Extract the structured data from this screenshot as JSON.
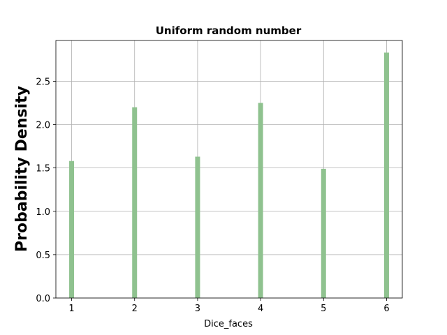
{
  "chart_data": {
    "type": "bar",
    "title": "Uniform random number",
    "xlabel": "Dice_faces",
    "ylabel": "Probability Density",
    "categories": [
      1,
      2,
      3,
      4,
      5,
      6
    ],
    "values": [
      1.58,
      2.2,
      1.63,
      2.25,
      1.49,
      2.83
    ],
    "xlim": [
      0.75,
      6.25
    ],
    "ylim": [
      0,
      2.97
    ],
    "xticks": [
      1,
      2,
      3,
      4,
      5,
      6
    ],
    "xtick_labels": [
      "1",
      "2",
      "3",
      "4",
      "5",
      "6"
    ],
    "yticks": [
      0,
      0.5,
      1.0,
      1.5,
      2.0,
      2.5
    ],
    "ytick_labels": [
      "0.0",
      "0.5",
      "1.0",
      "1.5",
      "2.0",
      "2.5"
    ],
    "grid": true,
    "bar_color": "#8fc28f",
    "grid_color": "#b0b0b0"
  }
}
